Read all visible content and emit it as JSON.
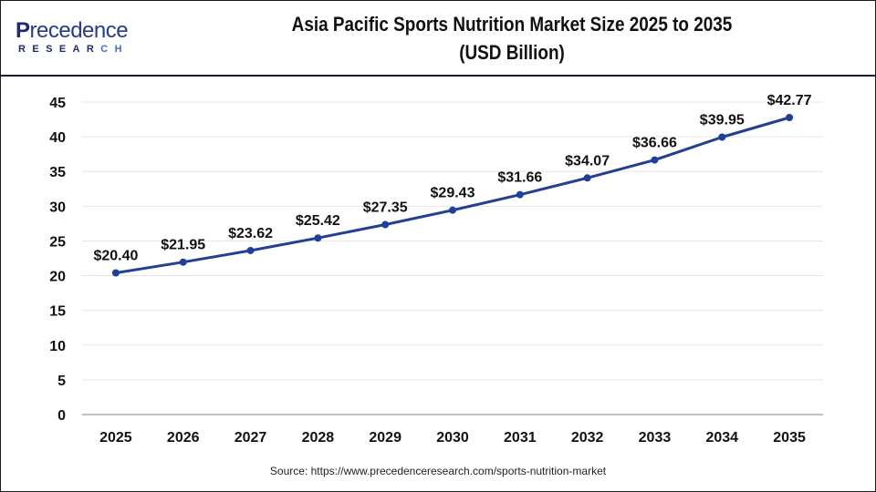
{
  "logo": {
    "line1_first": "P",
    "line1_rest": "recedence",
    "line2_main": "RESEAR",
    "line2_accent": "CH"
  },
  "title": {
    "line1": "Asia Pacific Sports Nutrition Market Size 2025 to 2035",
    "line2": "(USD Billion)"
  },
  "source": "Source: https://www.precedenceresearch.com/sports-nutrition-market",
  "colors": {
    "line": "#1f3fa0",
    "marker": "#1f3fa0",
    "grid": "#e6e6e6",
    "axis": "#c0c0c0",
    "header_rule": "#141a4a"
  },
  "chart_data": {
    "type": "line",
    "title": "Asia Pacific Sports Nutrition Market Size 2025 to 2035 (USD Billion)",
    "xlabel": "",
    "ylabel": "",
    "categories": [
      "2025",
      "2026",
      "2027",
      "2028",
      "2029",
      "2030",
      "2031",
      "2032",
      "2033",
      "2034",
      "2035"
    ],
    "series": [
      {
        "name": "Market Size (USD Billion)",
        "values": [
          20.4,
          21.95,
          23.62,
          25.42,
          27.35,
          29.43,
          31.66,
          34.07,
          36.66,
          39.95,
          42.77
        ]
      }
    ],
    "data_labels": [
      "$20.40",
      "$21.95",
      "$23.62",
      "$25.42",
      "$27.35",
      "$29.43",
      "$31.66",
      "$34.07",
      "$36.66",
      "$39.95",
      "$42.77"
    ],
    "yticks": [
      0,
      5,
      10,
      15,
      20,
      25,
      30,
      35,
      40,
      45
    ],
    "ylim": [
      0,
      45
    ],
    "grid": true,
    "legend": "none"
  }
}
